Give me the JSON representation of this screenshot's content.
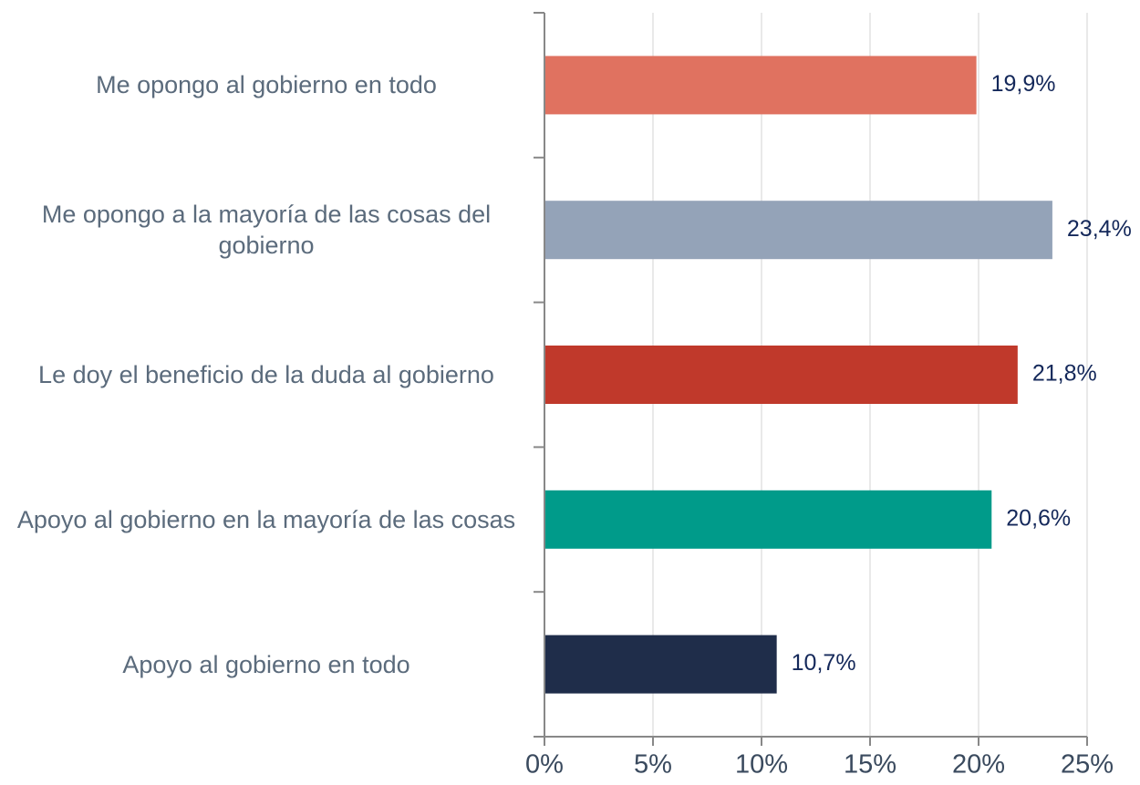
{
  "chart_data": {
    "type": "bar",
    "orientation": "horizontal",
    "categories": [
      "Me opongo al gobierno en todo",
      "Me opongo a la mayoría de las cosas del gobierno",
      "Le doy el beneficio de la duda al gobierno",
      "Apoyo al gobierno en la mayoría de las cosas",
      "Apoyo al gobierno en todo"
    ],
    "values": [
      19.9,
      23.4,
      21.8,
      20.6,
      10.7
    ],
    "value_labels": [
      "19,9%",
      "23,4%",
      "21,8%",
      "20,6%",
      "10,7%"
    ],
    "colors": [
      "#e07260",
      "#94a3b8",
      "#c0392b",
      "#009b8a",
      "#1f2d4a"
    ],
    "xlim": [
      0,
      25
    ],
    "xticks": [
      {
        "value": 0,
        "label": "0%"
      },
      {
        "value": 5,
        "label": "5%"
      },
      {
        "value": 10,
        "label": "10%"
      },
      {
        "value": 15,
        "label": "15%"
      },
      {
        "value": 20,
        "label": "20%"
      },
      {
        "value": 25,
        "label": "25%"
      }
    ],
    "grid": true
  }
}
